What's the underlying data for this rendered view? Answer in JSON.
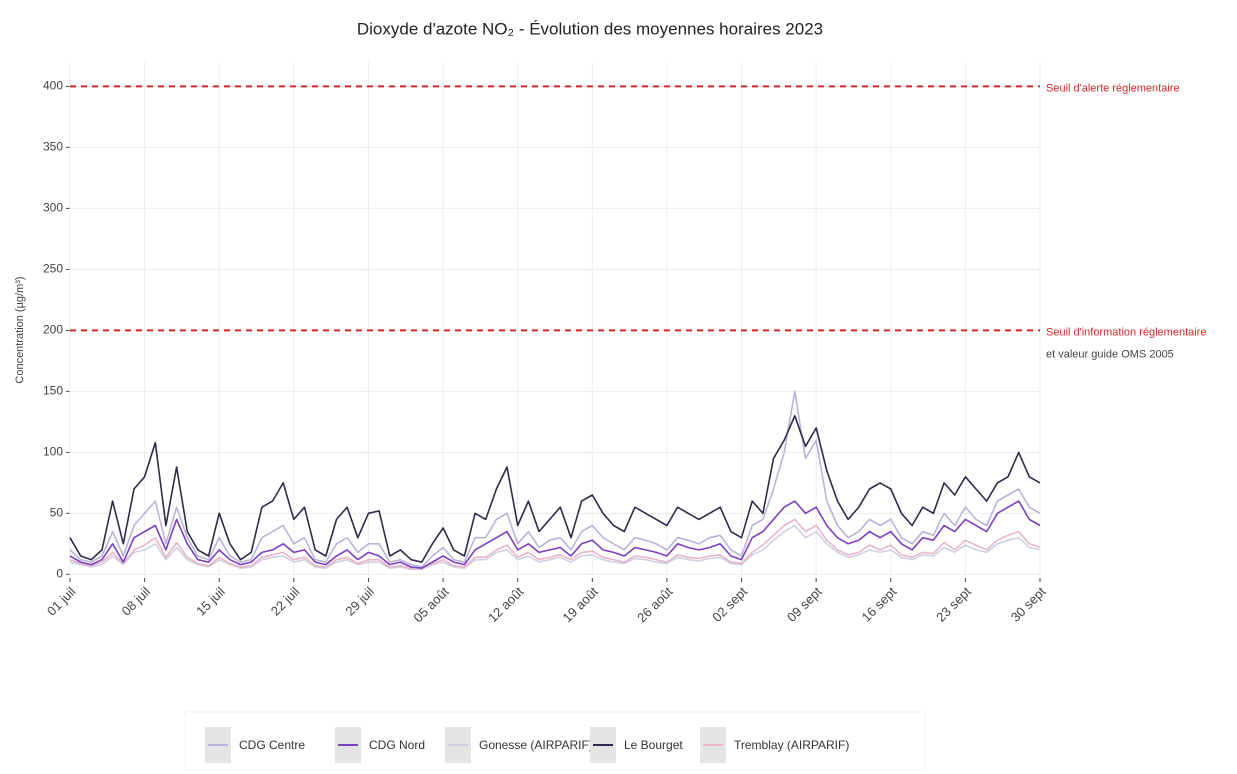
{
  "chart_data": {
    "type": "line",
    "title": "Dioxyde d'azote NO₂ - Évolution des moyennes horaires 2023",
    "y_label": "Concentration (µg/m³)",
    "x": [
      0,
      1,
      2,
      3,
      4,
      5,
      6,
      7,
      8,
      9,
      10,
      11,
      12,
      13,
      14,
      15,
      16,
      17,
      18,
      19,
      20,
      21,
      22,
      23,
      24,
      25,
      26,
      27,
      28,
      29,
      30,
      31,
      32,
      33,
      34,
      35,
      36,
      37,
      38,
      39,
      40,
      41,
      42,
      43,
      44,
      45,
      46,
      47,
      48,
      49,
      50,
      51,
      52,
      53,
      54,
      55,
      56,
      57,
      58,
      59,
      60,
      61,
      62,
      63,
      64,
      65,
      66,
      67,
      68,
      69,
      70,
      71,
      72,
      73,
      74,
      75,
      76,
      77,
      78,
      79,
      80,
      81,
      82,
      83,
      84,
      85,
      86,
      87,
      88,
      89,
      90,
      91
    ],
    "xlim": [
      0,
      91
    ],
    "xticks": [
      {
        "value": 0,
        "label": "01 juil"
      },
      {
        "value": 7,
        "label": "08 juil"
      },
      {
        "value": 14,
        "label": "15 juil"
      },
      {
        "value": 21,
        "label": "22 juil"
      },
      {
        "value": 28,
        "label": "29 juil"
      },
      {
        "value": 35,
        "label": "05 août"
      },
      {
        "value": 42,
        "label": "12 août"
      },
      {
        "value": 49,
        "label": "19 août"
      },
      {
        "value": 56,
        "label": "26 août"
      },
      {
        "value": 63,
        "label": "02 sept"
      },
      {
        "value": 70,
        "label": "09 sept"
      },
      {
        "value": 77,
        "label": "16 sept"
      },
      {
        "value": 84,
        "label": "23 sept"
      },
      {
        "value": 91,
        "label": "30 sept"
      }
    ],
    "ylim": [
      -3,
      420
    ],
    "yticks": [
      0,
      50,
      100,
      150,
      200,
      250,
      300,
      350,
      400
    ],
    "grid": true,
    "legend": "bottom",
    "hlines": [
      {
        "value": 400,
        "label": "Seuil d'alerte réglementaire",
        "color": "#d62728"
      },
      {
        "value": 200,
        "label": "Seuil d'information réglementaire",
        "sublabel": "et valeur guide OMS 2005",
        "color": "#d62728"
      }
    ],
    "series": [
      {
        "name": "CDG Centre",
        "color": "#b9b4dc",
        "values": [
          20,
          12,
          10,
          15,
          35,
          15,
          40,
          50,
          60,
          25,
          55,
          30,
          15,
          12,
          30,
          15,
          10,
          12,
          30,
          35,
          40,
          25,
          30,
          12,
          10,
          25,
          30,
          18,
          25,
          25,
          10,
          12,
          8,
          6,
          15,
          22,
          12,
          10,
          30,
          30,
          45,
          50,
          25,
          35,
          22,
          28,
          30,
          20,
          35,
          40,
          30,
          25,
          20,
          30,
          28,
          25,
          20,
          30,
          28,
          25,
          30,
          32,
          20,
          15,
          40,
          45,
          70,
          100,
          150,
          95,
          110,
          60,
          40,
          30,
          35,
          45,
          40,
          45,
          30,
          25,
          35,
          32,
          50,
          40,
          55,
          45,
          40,
          60,
          65,
          70,
          55,
          50
        ]
      },
      {
        "name": "CDG Nord",
        "color": "#7b3fc4",
        "values": [
          15,
          10,
          8,
          12,
          25,
          10,
          30,
          35,
          40,
          20,
          45,
          25,
          12,
          10,
          20,
          12,
          8,
          10,
          18,
          20,
          25,
          18,
          20,
          10,
          8,
          15,
          20,
          12,
          18,
          15,
          8,
          10,
          6,
          5,
          10,
          15,
          10,
          8,
          20,
          25,
          30,
          35,
          20,
          25,
          18,
          20,
          22,
          15,
          25,
          28,
          20,
          18,
          15,
          22,
          20,
          18,
          15,
          25,
          22,
          20,
          22,
          25,
          15,
          12,
          30,
          35,
          45,
          55,
          60,
          50,
          55,
          40,
          30,
          25,
          28,
          35,
          30,
          35,
          25,
          20,
          30,
          28,
          40,
          35,
          45,
          40,
          35,
          50,
          55,
          60,
          45,
          40
        ]
      },
      {
        "name": "Gonesse (AIRPARIF)",
        "color": "#cfcfe2",
        "values": [
          10,
          8,
          6,
          8,
          15,
          8,
          18,
          20,
          25,
          12,
          22,
          12,
          8,
          6,
          12,
          8,
          5,
          6,
          12,
          14,
          15,
          10,
          12,
          6,
          5,
          10,
          12,
          8,
          10,
          10,
          5,
          6,
          4,
          4,
          8,
          10,
          6,
          5,
          12,
          12,
          18,
          20,
          12,
          15,
          10,
          12,
          14,
          10,
          15,
          16,
          12,
          10,
          9,
          13,
          12,
          10,
          9,
          14,
          12,
          11,
          13,
          14,
          9,
          8,
          16,
          20,
          28,
          35,
          40,
          30,
          35,
          25,
          18,
          14,
          16,
          20,
          18,
          20,
          14,
          12,
          16,
          15,
          22,
          18,
          24,
          20,
          18,
          25,
          28,
          30,
          22,
          20
        ]
      },
      {
        "name": "Le Bourget",
        "color": "#2e2b4c",
        "values": [
          30,
          15,
          12,
          20,
          60,
          25,
          70,
          80,
          108,
          40,
          88,
          35,
          20,
          15,
          50,
          25,
          12,
          18,
          55,
          60,
          75,
          45,
          55,
          20,
          15,
          45,
          55,
          30,
          50,
          52,
          15,
          20,
          12,
          10,
          25,
          38,
          20,
          15,
          50,
          45,
          70,
          88,
          40,
          60,
          35,
          45,
          55,
          30,
          60,
          65,
          50,
          40,
          35,
          55,
          50,
          45,
          40,
          55,
          50,
          45,
          50,
          55,
          35,
          30,
          60,
          50,
          95,
          110,
          130,
          105,
          120,
          85,
          60,
          45,
          55,
          70,
          75,
          70,
          50,
          40,
          55,
          50,
          75,
          65,
          80,
          70,
          60,
          75,
          80,
          100,
          80,
          75
        ]
      },
      {
        "name": "Tremblay (AIRPARIF)",
        "color": "#e8b6c6",
        "values": [
          12,
          9,
          7,
          10,
          18,
          9,
          20,
          24,
          30,
          14,
          26,
          14,
          9,
          7,
          14,
          9,
          6,
          7,
          14,
          16,
          18,
          12,
          14,
          7,
          6,
          12,
          14,
          9,
          12,
          12,
          6,
          7,
          5,
          5,
          9,
          12,
          7,
          6,
          14,
          14,
          20,
          24,
          14,
          18,
          12,
          14,
          16,
          12,
          18,
          19,
          14,
          12,
          10,
          15,
          14,
          12,
          10,
          16,
          14,
          13,
          15,
          16,
          10,
          9,
          18,
          24,
          32,
          40,
          45,
          35,
          40,
          28,
          20,
          16,
          18,
          24,
          20,
          24,
          16,
          14,
          18,
          17,
          26,
          20,
          28,
          24,
          20,
          28,
          32,
          35,
          25,
          22
        ]
      }
    ],
    "draw_order": [
      2,
      4,
      0,
      1,
      3
    ]
  }
}
